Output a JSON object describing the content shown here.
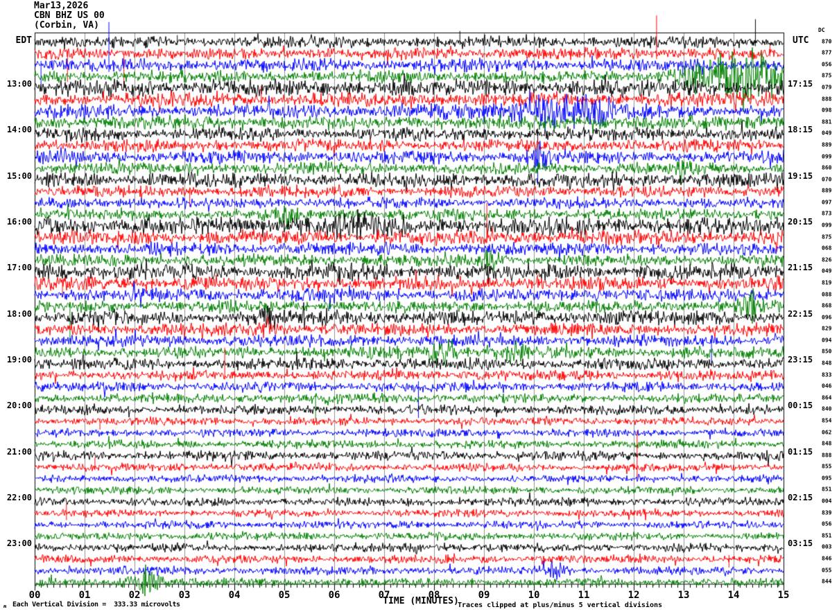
{
  "header": {
    "date": "Mar13,2026",
    "station": "CBN BHZ US 00",
    "location": "(Corbin, VA)"
  },
  "axes": {
    "left_tz": "EDT",
    "right_tz": "UTC",
    "dc_header": "DC",
    "xlabel": "TIME (MINUTES)",
    "minute_ticks": [
      "00",
      "01",
      "02",
      "03",
      "04",
      "05",
      "06",
      "07",
      "08",
      "09",
      "10",
      "11",
      "12",
      "13",
      "14",
      "15"
    ]
  },
  "footer": {
    "scale_note": "Each Vertical Division =  333.33 microvolts",
    "clip_note": "Traces clipped at plus/minus 5 vertical divisions",
    "corner_glyph": "ʍ"
  },
  "chart_data": {
    "type": "line",
    "title": "Helicorder seismogram CBN BHZ US 00 (Corbin, VA) Mar13,2026",
    "xlabel": "TIME (MINUTES)",
    "x_range_minutes": [
      0,
      15
    ],
    "minutes_per_row": 15,
    "rows_per_hour": 4,
    "clip_divisions": 5,
    "microvolts_per_division": 333.33,
    "trace_color_cycle": [
      "#000000",
      "#ff0000",
      "#0000ff",
      "#007f00"
    ],
    "grid_color": "#909090",
    "frame_color": "#000000",
    "minor_ticks_per_minute": 8,
    "rows": [
      {
        "c": 0,
        "l": "EDT",
        "r": "UTC",
        "dc": "870",
        "a": 4.2,
        "sp": [
          [
            8.51,
            16,
            4
          ],
          [
            14.43,
            33,
            6
          ],
          [
            2.85,
            10,
            4
          ]
        ]
      },
      {
        "c": 1,
        "dc": "877",
        "a": 4.2,
        "sp": [
          [
            0.65,
            4,
            41
          ],
          [
            1.78,
            4,
            50
          ],
          [
            12.45,
            55,
            8
          ],
          [
            14.72,
            12,
            4
          ]
        ]
      },
      {
        "c": 2,
        "dc": "056",
        "a": 4.6,
        "sp": [
          [
            0.12,
            6,
            28
          ],
          [
            1.48,
            62,
            10
          ],
          [
            12.97,
            5,
            15
          ]
        ]
      },
      {
        "c": 3,
        "dc": "875",
        "a": 4.6,
        "ev": [
          [
            13.3,
            0.4,
            7
          ],
          [
            14.3,
            0.45,
            16
          ]
        ]
      },
      {
        "c": 0,
        "l": "13:00",
        "r": "17:15",
        "dc": "079",
        "a": 6.2
      },
      {
        "c": 1,
        "dc": "888",
        "a": 5.2,
        "sp": [
          [
            4.53,
            20,
            6
          ]
        ]
      },
      {
        "c": 2,
        "dc": "098",
        "a": 5.4,
        "ev": [
          [
            10.3,
            0.5,
            13
          ],
          [
            11.3,
            0.3,
            7
          ]
        ]
      },
      {
        "c": 3,
        "dc": "881",
        "a": 5.2
      },
      {
        "c": 0,
        "l": "14:00",
        "r": "18:15",
        "dc": "049",
        "a": 4.8,
        "sp": [
          [
            10.07,
            8,
            45
          ]
        ]
      },
      {
        "c": 1,
        "dc": "889",
        "a": 4.4
      },
      {
        "c": 2,
        "dc": "099",
        "a": 4.6,
        "ev": [
          [
            10.1,
            0.15,
            10
          ]
        ],
        "sp": [
          [
            10.07,
            10,
            40
          ]
        ]
      },
      {
        "c": 3,
        "dc": "860",
        "a": 4.4,
        "ev": [
          [
            12.95,
            0.1,
            7
          ]
        ]
      },
      {
        "c": 0,
        "l": "15:00",
        "r": "19:15",
        "dc": "070",
        "a": 5.4
      },
      {
        "c": 1,
        "dc": "889",
        "a": 4.2,
        "sp": [
          [
            3.1,
            6,
            22
          ]
        ]
      },
      {
        "c": 2,
        "dc": "097",
        "a": 4.0
      },
      {
        "c": 3,
        "dc": "873",
        "a": 4.2,
        "ev": [
          [
            5.05,
            0.15,
            7
          ]
        ]
      },
      {
        "c": 0,
        "l": "16:00",
        "r": "20:15",
        "dc": "099",
        "a": 6.4,
        "ev": [
          [
            6.2,
            0.8,
            3
          ]
        ]
      },
      {
        "c": 1,
        "dc": "875",
        "a": 5.4,
        "sp": [
          [
            9.05,
            50,
            8
          ]
        ]
      },
      {
        "c": 2,
        "dc": "068",
        "a": 4.6
      },
      {
        "c": 3,
        "dc": "826",
        "a": 4.4,
        "ev": [
          [
            9.1,
            0.1,
            6
          ]
        ]
      },
      {
        "c": 0,
        "l": "17:00",
        "r": "21:15",
        "dc": "049",
        "a": 5.8,
        "ev": [
          [
            0.3,
            0.3,
            4
          ]
        ]
      },
      {
        "c": 1,
        "dc": "819",
        "a": 5.2,
        "sp": [
          [
            0.55,
            6,
            20
          ]
        ]
      },
      {
        "c": 2,
        "dc": "088",
        "a": 4.8
      },
      {
        "c": 3,
        "dc": "868",
        "a": 4.4,
        "ev": [
          [
            14.35,
            0.15,
            9
          ]
        ],
        "sp": [
          [
            0.7,
            6,
            48
          ]
        ]
      },
      {
        "c": 0,
        "l": "18:00",
        "r": "22:15",
        "dc": "096",
        "a": 5.4,
        "ev": [
          [
            4.6,
            0.2,
            5
          ]
        ]
      },
      {
        "c": 1,
        "dc": "829",
        "a": 4.4,
        "ev": [
          [
            4.65,
            0.1,
            8
          ]
        ]
      },
      {
        "c": 2,
        "dc": "094",
        "a": 4.4,
        "sp": [
          [
            13.55,
            8,
            32
          ]
        ]
      },
      {
        "c": 3,
        "dc": "850",
        "a": 4.4,
        "ev": [
          [
            8.25,
            0.2,
            8
          ],
          [
            9.6,
            0.15,
            6
          ]
        ]
      },
      {
        "c": 0,
        "l": "19:00",
        "r": "23:15",
        "dc": "848",
        "a": 4.4
      },
      {
        "c": 1,
        "dc": "833",
        "a": 3.8,
        "sp": [
          [
            3.8,
            40,
            6
          ]
        ]
      },
      {
        "c": 2,
        "dc": "046",
        "a": 3.6,
        "sp": [
          [
            7.68,
            8,
            45
          ]
        ]
      },
      {
        "c": 3,
        "dc": "864",
        "a": 3.6,
        "sp": [
          [
            5.62,
            6,
            30
          ]
        ]
      },
      {
        "c": 0,
        "l": "20:00",
        "r": "00:15",
        "dc": "840",
        "a": 3.4
      },
      {
        "c": 1,
        "dc": "854",
        "a": 3.0,
        "sp": [
          [
            1.3,
            4,
            12
          ]
        ]
      },
      {
        "c": 2,
        "dc": "062",
        "a": 3.0
      },
      {
        "c": 3,
        "dc": "848",
        "a": 3.0
      },
      {
        "c": 0,
        "l": "21:00",
        "r": "01:15",
        "dc": "888",
        "a": 3.4
      },
      {
        "c": 1,
        "dc": "855",
        "a": 3.0,
        "sp": [
          [
            1.2,
            14,
            4
          ],
          [
            12.06,
            52,
            16
          ]
        ]
      },
      {
        "c": 2,
        "dc": "095",
        "a": 2.8
      },
      {
        "c": 3,
        "dc": "851",
        "a": 2.8
      },
      {
        "c": 0,
        "l": "22:00",
        "r": "02:15",
        "dc": "004",
        "a": 3.2
      },
      {
        "c": 1,
        "dc": "839",
        "a": 2.8,
        "sp": [
          [
            0.63,
            14,
            10
          ]
        ]
      },
      {
        "c": 2,
        "dc": "056",
        "a": 2.8
      },
      {
        "c": 3,
        "dc": "851",
        "a": 2.8
      },
      {
        "c": 0,
        "l": "23:00",
        "r": "03:15",
        "dc": "003",
        "a": 3.2,
        "ev": [
          [
            7.6,
            0.15,
            4
          ]
        ]
      },
      {
        "c": 1,
        "dc": "846",
        "a": 3.0,
        "sp": [
          [
            13.9,
            6,
            12
          ]
        ]
      },
      {
        "c": 2,
        "dc": "055",
        "a": 3.0,
        "ev": [
          [
            10.45,
            0.15,
            7
          ]
        ]
      },
      {
        "c": 3,
        "dc": "844",
        "a": 3.0,
        "ev": [
          [
            2.15,
            0.25,
            11
          ]
        ]
      }
    ]
  }
}
